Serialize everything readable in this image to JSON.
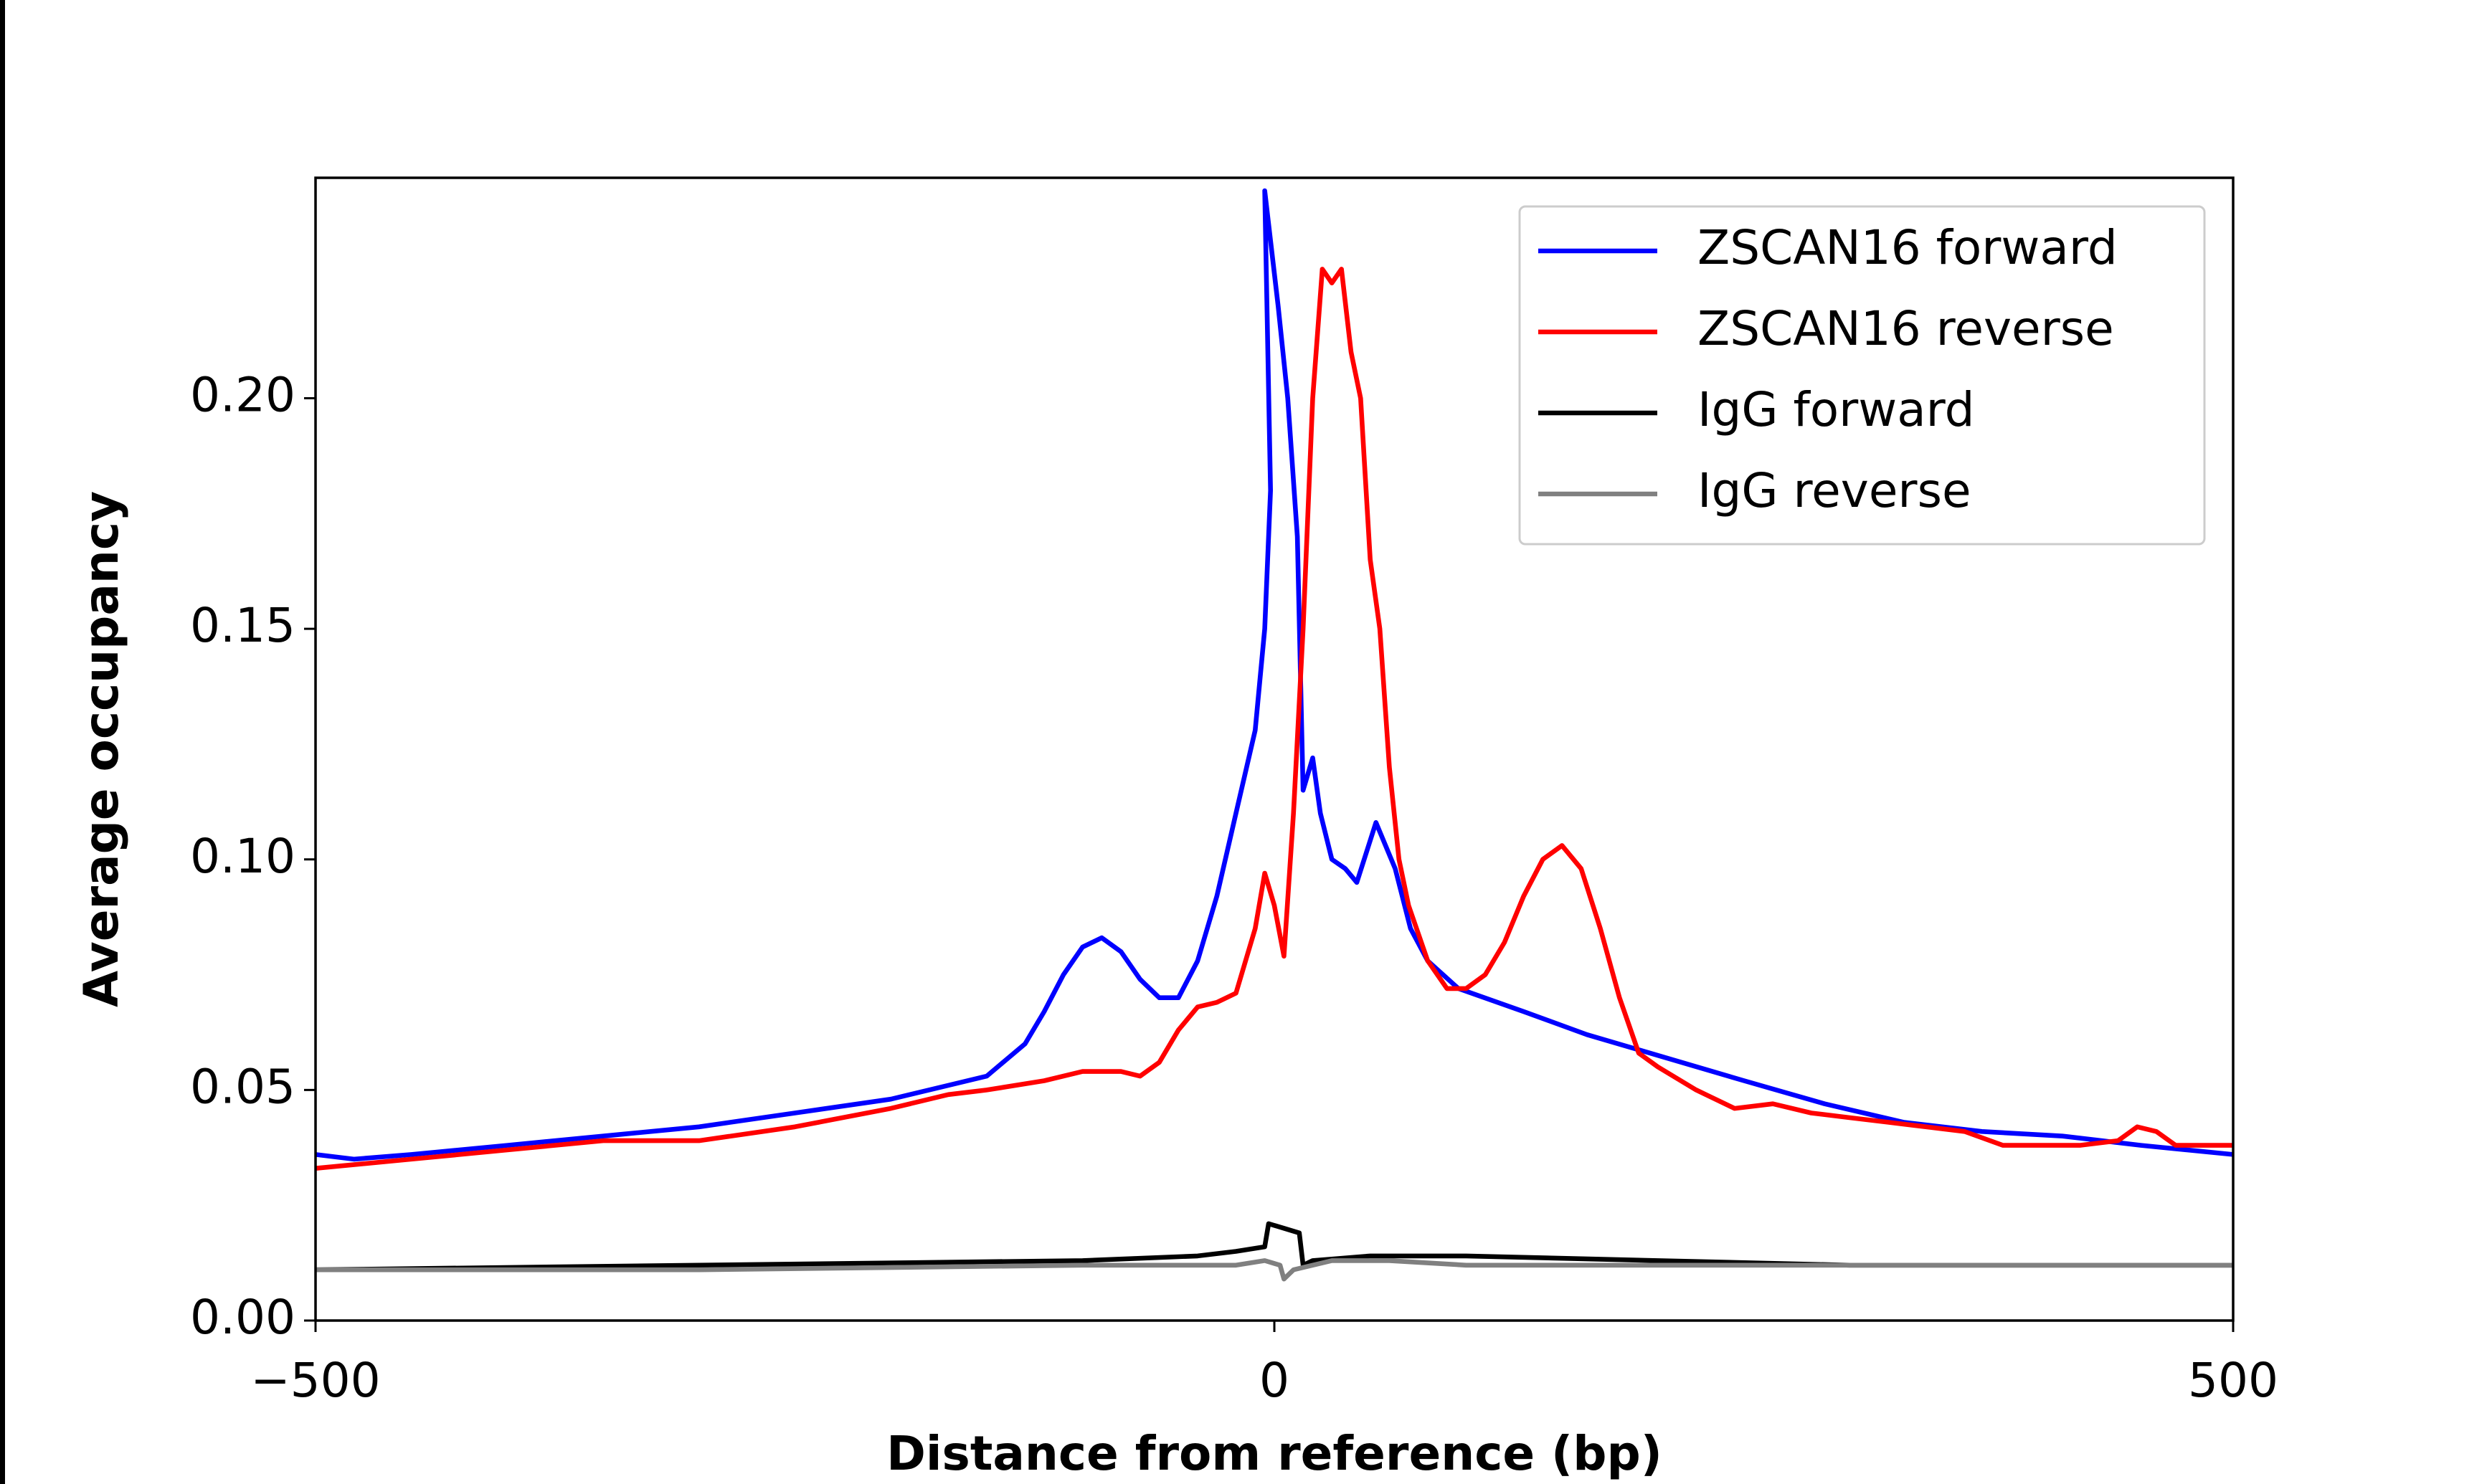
{
  "chart_data": {
    "type": "line",
    "xlabel": "Distance from reference (bp)",
    "ylabel": "Average occupancy",
    "xlim": [
      -500,
      500
    ],
    "xticks": [
      {
        "value": -500,
        "label": "−500"
      },
      0,
      500
    ],
    "ylim": [
      0,
      0.2478
    ],
    "yticks": [
      {
        "value": 0,
        "label": "0.00"
      },
      {
        "value": 0.05,
        "label": "0.05"
      },
      {
        "value": 0.1,
        "label": "0.10"
      },
      {
        "value": 0.15,
        "label": "0.15"
      },
      {
        "value": 0.2,
        "label": "0.20"
      }
    ],
    "legend": "upper right",
    "series": [
      {
        "name": "ZSCAN16 forward",
        "color": "#0000ff",
        "x": [
          -500,
          -480,
          -450,
          -400,
          -350,
          -300,
          -250,
          -200,
          -170,
          -150,
          -130,
          -120,
          -110,
          -100,
          -90,
          -80,
          -70,
          -60,
          -50,
          -40,
          -30,
          -20,
          -10,
          -5,
          -2,
          -5,
          2,
          7,
          12,
          15,
          20,
          24,
          30,
          37,
          43,
          53,
          63,
          71,
          80,
          96,
          130,
          163,
          204,
          245,
          287,
          328,
          369,
          411,
          452,
          500
        ],
        "values": [
          0.036,
          0.035,
          0.036,
          0.038,
          0.04,
          0.042,
          0.045,
          0.048,
          0.051,
          0.053,
          0.06,
          0.067,
          0.075,
          0.081,
          0.083,
          0.08,
          0.074,
          0.07,
          0.07,
          0.078,
          0.092,
          0.11,
          0.128,
          0.15,
          0.18,
          0.245,
          0.22,
          0.2,
          0.17,
          0.115,
          0.122,
          0.11,
          0.1,
          0.098,
          0.095,
          0.108,
          0.098,
          0.085,
          0.078,
          0.072,
          0.067,
          0.062,
          0.057,
          0.052,
          0.047,
          0.043,
          0.041,
          0.04,
          0.038,
          0.036
        ]
      },
      {
        "name": "ZSCAN16 reverse",
        "color": "#ff0000",
        "x": [
          -500,
          -450,
          -400,
          -350,
          -300,
          -250,
          -200,
          -170,
          -150,
          -120,
          -100,
          -80,
          -70,
          -60,
          -50,
          -40,
          -30,
          -20,
          -10,
          -5,
          0,
          5,
          10,
          15,
          20,
          25,
          30,
          35,
          40,
          45,
          50,
          55,
          60,
          65,
          70,
          80,
          90,
          100,
          110,
          120,
          130,
          140,
          150,
          160,
          170,
          180,
          190,
          200,
          220,
          240,
          260,
          280,
          300,
          320,
          340,
          360,
          380,
          400,
          420,
          440,
          450,
          460,
          470,
          500
        ],
        "values": [
          0.033,
          0.035,
          0.037,
          0.039,
          0.039,
          0.042,
          0.046,
          0.049,
          0.05,
          0.052,
          0.054,
          0.054,
          0.053,
          0.056,
          0.063,
          0.068,
          0.069,
          0.071,
          0.085,
          0.097,
          0.09,
          0.079,
          0.11,
          0.15,
          0.2,
          0.228,
          0.225,
          0.228,
          0.21,
          0.2,
          0.165,
          0.15,
          0.12,
          0.1,
          0.09,
          0.078,
          0.072,
          0.072,
          0.075,
          0.082,
          0.092,
          0.1,
          0.103,
          0.098,
          0.085,
          0.07,
          0.058,
          0.055,
          0.05,
          0.046,
          0.047,
          0.045,
          0.044,
          0.043,
          0.042,
          0.041,
          0.038,
          0.038,
          0.038,
          0.039,
          0.042,
          0.041,
          0.038,
          0.038
        ]
      },
      {
        "name": "IgG forward",
        "color": "#000000",
        "x": [
          -500,
          -300,
          -100,
          -40,
          -20,
          -5,
          -3,
          5,
          13,
          15,
          20,
          50,
          100,
          200,
          300,
          400,
          500
        ],
        "values": [
          0.011,
          0.012,
          0.013,
          0.014,
          0.015,
          0.016,
          0.021,
          0.02,
          0.019,
          0.012,
          0.013,
          0.014,
          0.014,
          0.013,
          0.012,
          0.012,
          0.012
        ]
      },
      {
        "name": "IgG reverse",
        "color": "#808080",
        "x": [
          -500,
          -300,
          -100,
          -40,
          -20,
          -5,
          3,
          5,
          10,
          20,
          30,
          60,
          100,
          300,
          500
        ],
        "values": [
          0.011,
          0.011,
          0.012,
          0.012,
          0.012,
          0.013,
          0.012,
          0.009,
          0.011,
          0.012,
          0.013,
          0.013,
          0.012,
          0.012,
          0.012
        ]
      }
    ]
  }
}
